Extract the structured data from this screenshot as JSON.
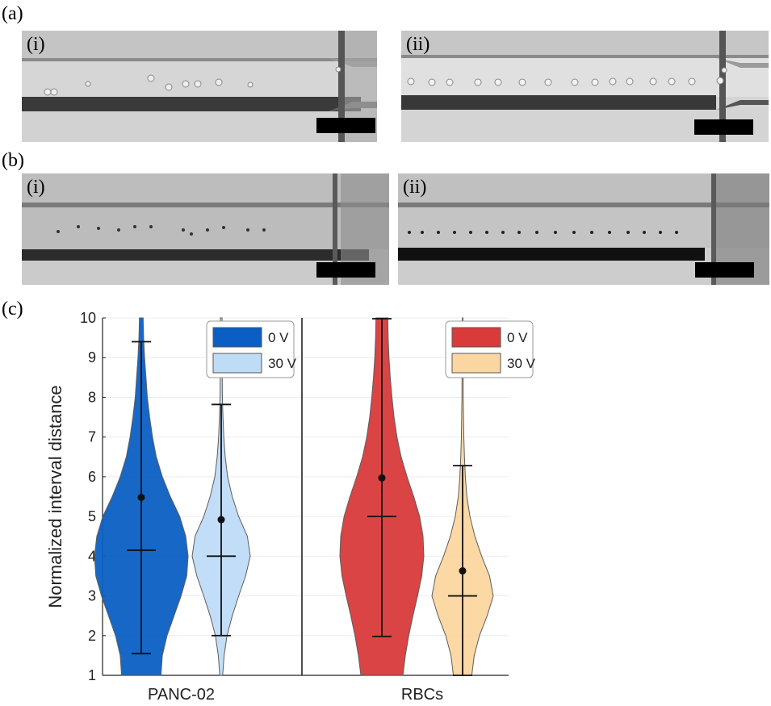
{
  "figure": {
    "panel_a_label": "(a)",
    "panel_b_label": "(b)",
    "panel_c_label": "(c)",
    "sub_i": "(i)",
    "sub_ii": "(ii)"
  },
  "chart_data": {
    "type": "violin",
    "ylabel": "Normalized interval distance",
    "xlabel": "",
    "ylim": [
      1,
      10
    ],
    "yticks": [
      1,
      2,
      3,
      4,
      5,
      6,
      7,
      8,
      9,
      10
    ],
    "categories": [
      "PANC-02",
      "RBCs"
    ],
    "groups": [
      {
        "category": "PANC-02",
        "legend": [
          {
            "label": "0 V",
            "color": "#0b5fc4"
          },
          {
            "label": "30 V",
            "color": "#bfdcf7"
          }
        ],
        "series": [
          {
            "name": "0 V",
            "color": "#0b5fc4",
            "mean": 5.48,
            "median": 4.15,
            "whisker_low": 1.55,
            "whisker_high": 9.4,
            "density": [
              [
                1.0,
                0.42
              ],
              [
                1.5,
                0.45
              ],
              [
                2.0,
                0.55
              ],
              [
                2.5,
                0.7
              ],
              [
                3.0,
                0.85
              ],
              [
                3.5,
                0.97
              ],
              [
                4.0,
                1.0
              ],
              [
                4.5,
                0.95
              ],
              [
                5.0,
                0.82
              ],
              [
                5.5,
                0.62
              ],
              [
                6.0,
                0.45
              ],
              [
                6.5,
                0.32
              ],
              [
                7.0,
                0.24
              ],
              [
                7.5,
                0.18
              ],
              [
                8.0,
                0.13
              ],
              [
                8.5,
                0.1
              ],
              [
                9.0,
                0.07
              ],
              [
                9.5,
                0.05
              ],
              [
                10.0,
                0.04
              ]
            ]
          },
          {
            "name": "30 V",
            "color": "#bfdcf7",
            "mean": 4.92,
            "median": 4.0,
            "whisker_low": 2.0,
            "whisker_high": 7.82,
            "density": [
              [
                1.0,
                0.05
              ],
              [
                1.5,
                0.1
              ],
              [
                2.0,
                0.2
              ],
              [
                2.5,
                0.38
              ],
              [
                3.0,
                0.6
              ],
              [
                3.5,
                0.84
              ],
              [
                4.0,
                1.0
              ],
              [
                4.5,
                0.9
              ],
              [
                5.0,
                0.6
              ],
              [
                5.5,
                0.38
              ],
              [
                6.0,
                0.22
              ],
              [
                6.5,
                0.14
              ],
              [
                7.0,
                0.09
              ],
              [
                7.5,
                0.06
              ],
              [
                8.0,
                0.04
              ],
              [
                9.0,
                0.03
              ],
              [
                10.0,
                0.03
              ]
            ]
          }
        ]
      },
      {
        "category": "RBCs",
        "legend": [
          {
            "label": "0 V",
            "color": "#d93a3a"
          },
          {
            "label": "30 V",
            "color": "#fbd6a0"
          }
        ],
        "series": [
          {
            "name": "0 V",
            "color": "#d93a3a",
            "mean": 5.97,
            "median": 5.0,
            "whisker_low": 1.98,
            "whisker_high": 9.98,
            "density": [
              [
                1.0,
                0.5
              ],
              [
                1.5,
                0.56
              ],
              [
                2.0,
                0.64
              ],
              [
                2.5,
                0.74
              ],
              [
                3.0,
                0.85
              ],
              [
                3.5,
                0.95
              ],
              [
                4.0,
                1.0
              ],
              [
                4.5,
                0.98
              ],
              [
                5.0,
                0.9
              ],
              [
                5.5,
                0.76
              ],
              [
                6.0,
                0.6
              ],
              [
                6.5,
                0.46
              ],
              [
                7.0,
                0.36
              ],
              [
                7.5,
                0.29
              ],
              [
                8.0,
                0.24
              ],
              [
                8.5,
                0.2
              ],
              [
                9.0,
                0.17
              ],
              [
                9.5,
                0.15
              ],
              [
                10.0,
                0.14
              ]
            ]
          },
          {
            "name": "30 V",
            "color": "#fbd6a0",
            "mean": 3.63,
            "median": 3.0,
            "whisker_low": 1.0,
            "whisker_high": 6.28,
            "density": [
              [
                1.0,
                0.3
              ],
              [
                1.5,
                0.38
              ],
              [
                2.0,
                0.55
              ],
              [
                2.5,
                0.8
              ],
              [
                3.0,
                1.0
              ],
              [
                3.5,
                0.88
              ],
              [
                4.0,
                0.62
              ],
              [
                4.5,
                0.4
              ],
              [
                5.0,
                0.24
              ],
              [
                5.5,
                0.14
              ],
              [
                6.0,
                0.09
              ],
              [
                6.5,
                0.06
              ],
              [
                7.0,
                0.04
              ],
              [
                8.0,
                0.02
              ],
              [
                9.0,
                0.015
              ],
              [
                10.0,
                0.01
              ]
            ]
          }
        ]
      }
    ],
    "grid": true,
    "legend_position": "top-right of each panel"
  }
}
